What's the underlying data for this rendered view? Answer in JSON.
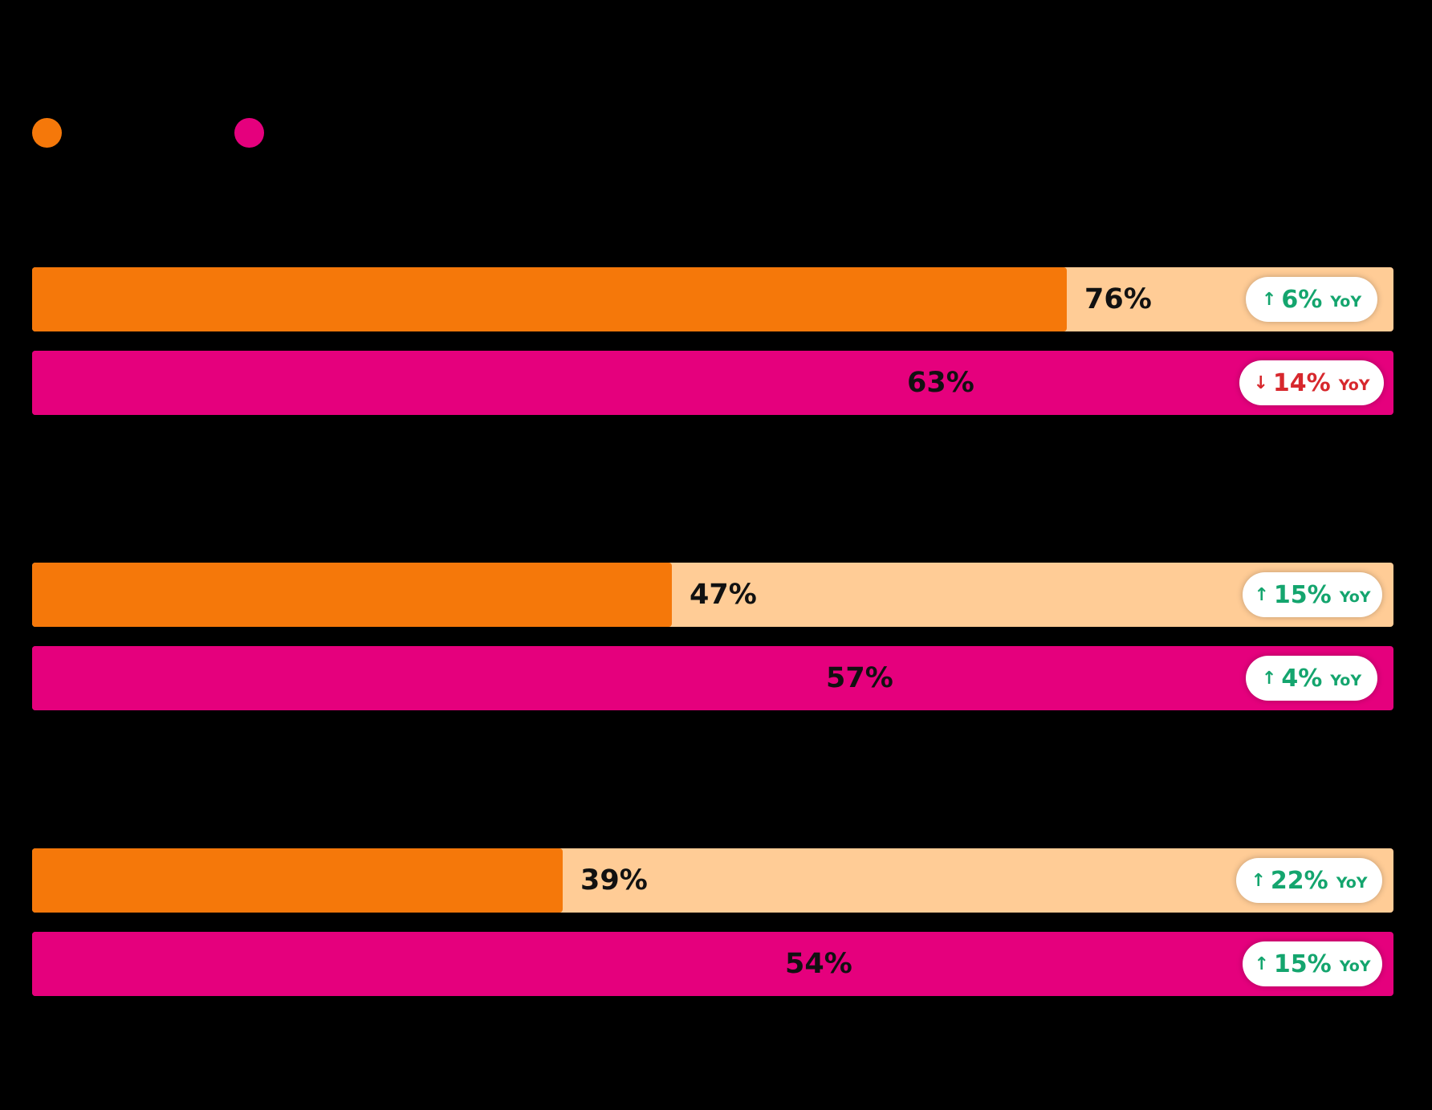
{
  "colors": {
    "background": "#000000",
    "orange": "#F5780A",
    "orange_track": "#FFCC96",
    "pink": "#E5007D",
    "pink_track": "#E5007D",
    "up": "#14A56E",
    "down": "#D7282D"
  },
  "chart_data": {
    "type": "bar",
    "orientation": "horizontal",
    "xlim": [
      0,
      100
    ],
    "unit": "%",
    "change_unit": "YoY",
    "legend": [
      "",
      ""
    ],
    "groups": [
      {
        "label": "",
        "bars": [
          {
            "series": 0,
            "value": 76,
            "value_label": "76%",
            "change": 6,
            "change_label": "6%",
            "direction": "up"
          },
          {
            "series": 1,
            "value": 63,
            "value_label": "63%",
            "change": -14,
            "change_label": "14%",
            "direction": "down"
          }
        ]
      },
      {
        "label": "",
        "bars": [
          {
            "series": 0,
            "value": 47,
            "value_label": "47%",
            "change": 15,
            "change_label": "15%",
            "direction": "up"
          },
          {
            "series": 1,
            "value": 57,
            "value_label": "57%",
            "change": 4,
            "change_label": "4%",
            "direction": "up"
          }
        ]
      },
      {
        "label": "",
        "bars": [
          {
            "series": 0,
            "value": 39,
            "value_label": "39%",
            "change": 22,
            "change_label": "22%",
            "direction": "up"
          },
          {
            "series": 1,
            "value": 54,
            "value_label": "54%",
            "change": 15,
            "change_label": "15%",
            "direction": "up"
          }
        ]
      }
    ]
  }
}
